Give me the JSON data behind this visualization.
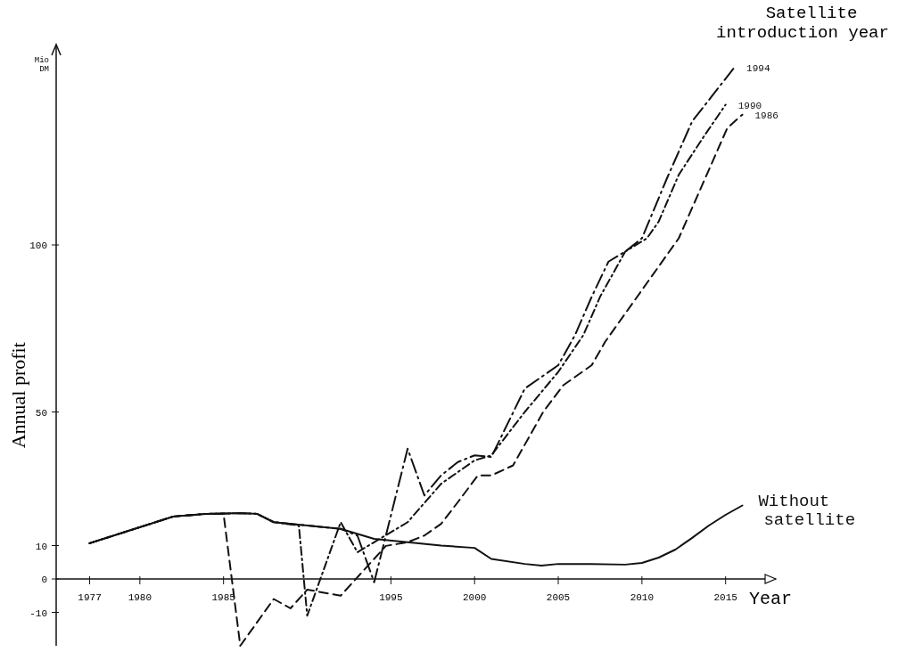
{
  "chart_data": {
    "type": "line",
    "xlabel": "Year",
    "ylabel": "Annual profit",
    "legend_title": "Satellite introduction year",
    "annotations": [
      "Mio DM"
    ],
    "xlim": [
      1975,
      2018
    ],
    "ylim": [
      -20,
      160
    ],
    "xticks": [
      1977,
      1980,
      1985,
      1995,
      2000,
      2005,
      2010,
      2015
    ],
    "yticks": [
      -10,
      0,
      10,
      50,
      100
    ],
    "grid": false,
    "marker": "none",
    "series": [
      {
        "name": "1994",
        "color": "#111111",
        "line_style": "longdashdot",
        "x": [
          1977,
          1980,
          1982,
          1984,
          1986,
          1987,
          1988,
          1990,
          1992,
          1993,
          1994,
          1996,
          1997,
          1998,
          1999,
          2000,
          2001,
          2003,
          2005,
          2006,
          2007,
          2008,
          2009,
          2010,
          2011.5,
          2013,
          2015.5
        ],
        "values": [
          10.7,
          15.5,
          18.7,
          19.5,
          19.7,
          19.5,
          17,
          16,
          15,
          13,
          -1,
          39,
          25,
          31,
          35,
          37,
          36.5,
          57,
          64,
          73,
          84.5,
          95,
          98,
          102,
          120,
          137,
          153
        ]
      },
      {
        "name": "1990",
        "color": "#111111",
        "line_style": "dashdot",
        "x": [
          1977,
          1980,
          1982,
          1984,
          1986,
          1987,
          1988,
          1989.5,
          1990,
          1992,
          1993,
          1994.5,
          1996,
          1998,
          1999,
          2000,
          2001,
          2003,
          2005,
          2006.5,
          2007.5,
          2009,
          2010.3,
          2011,
          2012.2,
          2013.7,
          2015
        ],
        "values": [
          10.7,
          15.5,
          18.7,
          19.5,
          19.7,
          19.5,
          17,
          16,
          -11,
          17,
          8,
          12.5,
          17,
          28.5,
          32,
          35.5,
          37,
          50,
          62,
          73,
          84.5,
          98,
          102,
          107,
          121,
          132.5,
          142
        ]
      },
      {
        "name": "1986",
        "color": "#111111",
        "line_style": "dashed",
        "x": [
          1977,
          1980,
          1982,
          1984,
          1985,
          1986,
          1988,
          1989,
          1990,
          1992,
          1994.7,
          1996,
          1997,
          1998,
          1999,
          2000.2,
          2001,
          2002.3,
          2004.1,
          2005.3,
          2007,
          2007.8,
          2012.2,
          2015.1,
          2016
        ],
        "values": [
          10.7,
          15.5,
          18.7,
          19.5,
          19.5,
          -20,
          -6,
          -8.8,
          -3.2,
          -5,
          9.9,
          11,
          13,
          16.5,
          23,
          31,
          31,
          34,
          50,
          58,
          64,
          71,
          102,
          135,
          139
        ]
      },
      {
        "name": "Without satellite",
        "color": "#111111",
        "line_style": "solid",
        "x": [
          1977,
          1980,
          1982,
          1984,
          1986,
          1987,
          1988,
          1990,
          1992,
          1994,
          1996,
          1998,
          2000,
          2001,
          2003,
          2004,
          2005,
          2007,
          2009,
          2010,
          2011,
          2012,
          2013,
          2014,
          2015,
          2016
        ],
        "values": [
          10.7,
          15.5,
          18.7,
          19.5,
          19.7,
          19.5,
          17,
          16,
          15,
          12,
          11,
          10,
          9.3,
          6,
          4.5,
          4,
          4.5,
          4.5,
          4.3,
          4.8,
          6.4,
          8.8,
          12.3,
          16,
          19.2,
          22
        ]
      }
    ]
  }
}
